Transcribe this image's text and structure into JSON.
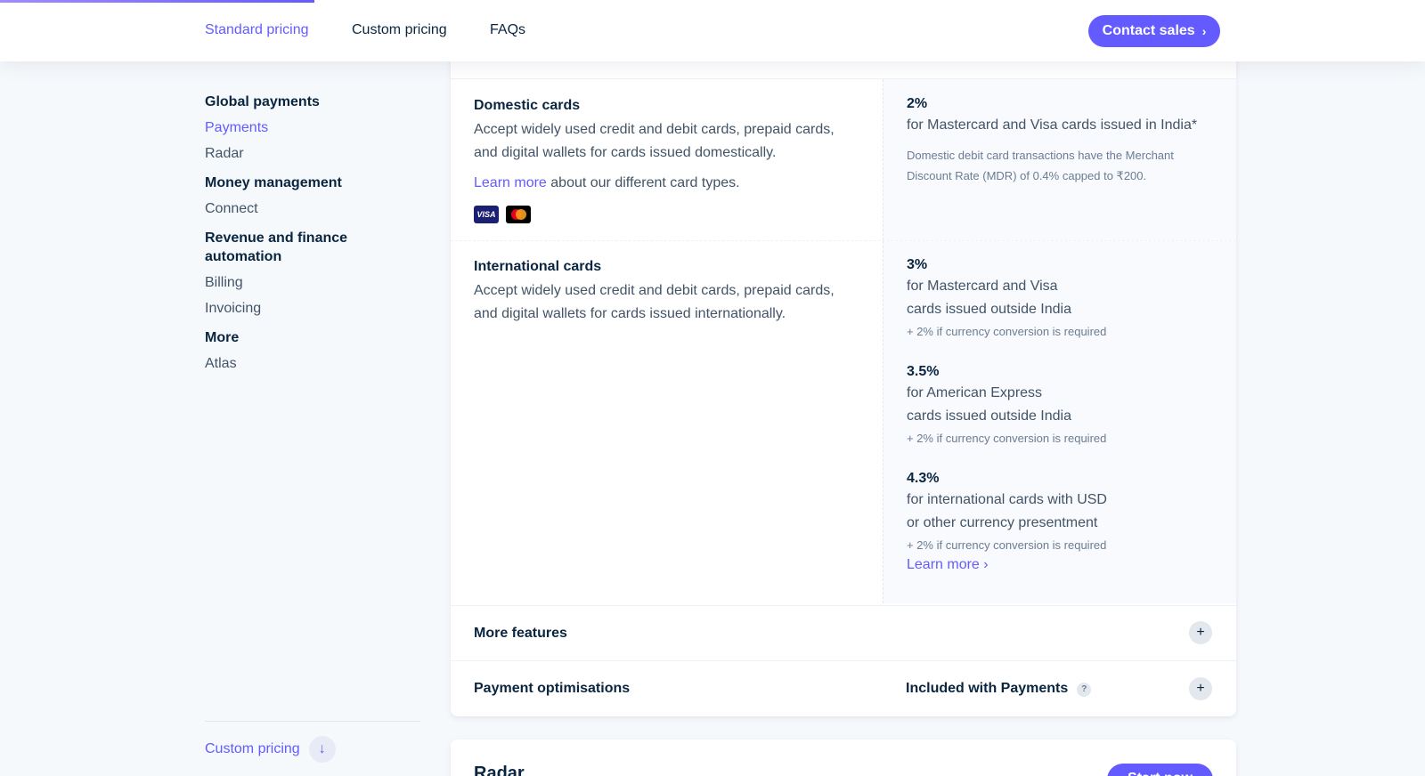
{
  "nav": {
    "links": [
      "Standard pricing",
      "Custom pricing",
      "FAQs"
    ],
    "contact": "Contact sales"
  },
  "sidebar": {
    "groups": [
      {
        "heading": "Global payments",
        "items": [
          "Payments",
          "Radar"
        ]
      },
      {
        "heading": "Money management",
        "items": [
          "Connect"
        ]
      },
      {
        "heading": "Revenue and finance automation",
        "items": [
          "Billing",
          "Invoicing"
        ]
      },
      {
        "heading": "More",
        "items": [
          "Atlas"
        ]
      }
    ],
    "footer": "Custom pricing"
  },
  "domestic": {
    "title": "Domestic cards",
    "desc": "Accept widely used credit and debit cards, prepaid cards, and digital wallets for cards issued domestically.",
    "link": "Learn more",
    "link_suffix": " about our different card types.",
    "rate": "2%",
    "rate_desc": "for Mastercard and Visa cards issued in India*",
    "note": "Domestic debit card transactions have the Merchant Discount Rate (MDR) of 0.4% capped to ₹200."
  },
  "international": {
    "title": "International cards",
    "desc": "Accept widely used credit and debit cards, prepaid cards, and digital wallets for cards issued internationally.",
    "rates": [
      {
        "rate": "3%",
        "line1": "for Mastercard and Visa",
        "line2": "cards issued outside India",
        "note": "+ 2% if currency conversion is required"
      },
      {
        "rate": "3.5%",
        "line1": "for American Express",
        "line2": "cards issued outside India",
        "note": "+ 2% if currency conversion is required"
      },
      {
        "rate": "4.3%",
        "line1": "for international cards with USD",
        "line2": "or other currency presentment",
        "note": "+ 2% if currency conversion is required"
      }
    ],
    "learn": "Learn more"
  },
  "more_features": "More features",
  "optimisations": {
    "title": "Payment optimisations",
    "included": "Included with Payments"
  },
  "radar": {
    "title": "Radar",
    "button": "Start now"
  },
  "icons": {
    "visa": "VISA"
  }
}
